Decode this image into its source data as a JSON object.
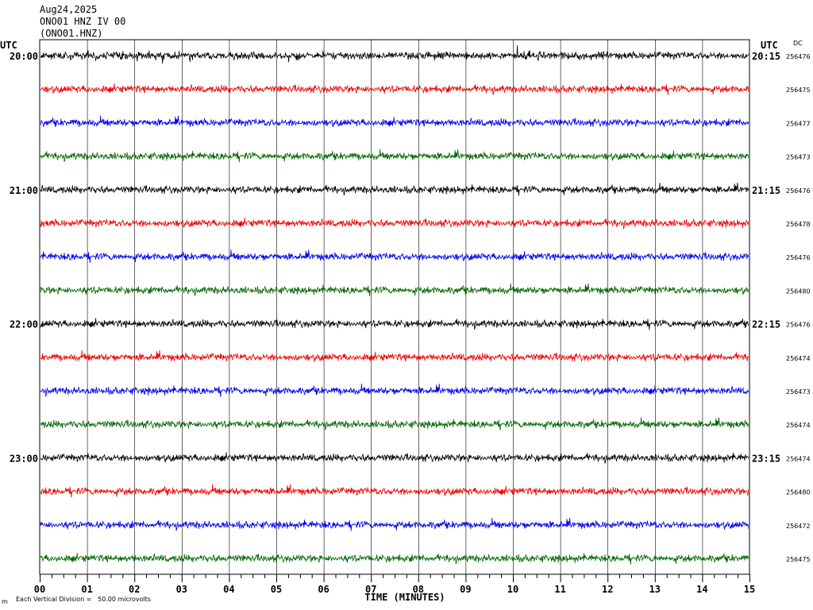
{
  "header": {
    "date": "Aug24,2025",
    "station_line": "ONO01 HNZ IV 00",
    "station_code": "(ONO01.HNZ)"
  },
  "left_axis_label": "UTC",
  "right_axis_label": "UTC",
  "dc_label": "DC",
  "footer": {
    "scale_note": "Each Vertical Division =   50.00 microvolts",
    "corner_mark": "m"
  },
  "colors": {
    "black": "#000000",
    "red": "#ee0000",
    "blue": "#0000ee",
    "green": "#006600"
  },
  "chart_data": {
    "type": "line",
    "title": "",
    "xlabel": "TIME (MINUTES)",
    "ylabel": "",
    "x_ticks": [
      "00",
      "01",
      "02",
      "03",
      "04",
      "05",
      "06",
      "07",
      "08",
      "09",
      "10",
      "11",
      "12",
      "13",
      "14",
      "15"
    ],
    "xlim": [
      0,
      15
    ],
    "grid": true,
    "trace_color_cycle": [
      "black",
      "red",
      "blue",
      "green"
    ],
    "traces": [
      {
        "start_label": "20:00",
        "end_label": "20:15",
        "dc": "256476"
      },
      {
        "start_label": "",
        "end_label": "",
        "dc": "256475"
      },
      {
        "start_label": "",
        "end_label": "",
        "dc": "256477"
      },
      {
        "start_label": "",
        "end_label": "",
        "dc": "256473"
      },
      {
        "start_label": "21:00",
        "end_label": "21:15",
        "dc": "256476"
      },
      {
        "start_label": "",
        "end_label": "",
        "dc": "256478"
      },
      {
        "start_label": "",
        "end_label": "",
        "dc": "256476"
      },
      {
        "start_label": "",
        "end_label": "",
        "dc": "256480"
      },
      {
        "start_label": "22:00",
        "end_label": "22:15",
        "dc": "256476"
      },
      {
        "start_label": "",
        "end_label": "",
        "dc": "256474"
      },
      {
        "start_label": "",
        "end_label": "",
        "dc": "256473"
      },
      {
        "start_label": "",
        "end_label": "",
        "dc": "256474"
      },
      {
        "start_label": "23:00",
        "end_label": "23:15",
        "dc": "256474"
      },
      {
        "start_label": "",
        "end_label": "",
        "dc": "256480"
      },
      {
        "start_label": "",
        "end_label": "",
        "dc": "256472"
      },
      {
        "start_label": "",
        "end_label": "",
        "dc": "256475"
      }
    ]
  }
}
